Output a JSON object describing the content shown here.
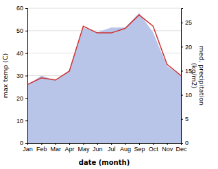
{
  "chart_data": {
    "type": "line",
    "categories": [
      "Jan",
      "Feb",
      "Mar",
      "Apr",
      "May",
      "Jun",
      "Jul",
      "Aug",
      "Sep",
      "Oct",
      "Nov",
      "Dec"
    ],
    "series": [
      {
        "type": "area",
        "axis": "y2",
        "color": "#b8c4e8",
        "values": [
          12,
          14,
          13,
          15,
          24,
          23,
          24,
          24,
          27,
          23,
          16,
          14
        ]
      },
      {
        "type": "line",
        "color": "#cc3333",
        "values": [
          26,
          29,
          28,
          32,
          52,
          49,
          49,
          51,
          57,
          52,
          35,
          30
        ]
      }
    ],
    "x_label": "date (month)",
    "y_label": "max temp (C)",
    "y2_label": "med. precipitation\n(kg/m2)",
    "ylim": [
      0,
      60
    ],
    "yticks": [
      0,
      10,
      20,
      30,
      40,
      50,
      60
    ],
    "y2lim": [
      0,
      28
    ],
    "y2ticks": [
      0,
      5,
      10,
      15,
      20,
      25
    ],
    "grid": true
  }
}
